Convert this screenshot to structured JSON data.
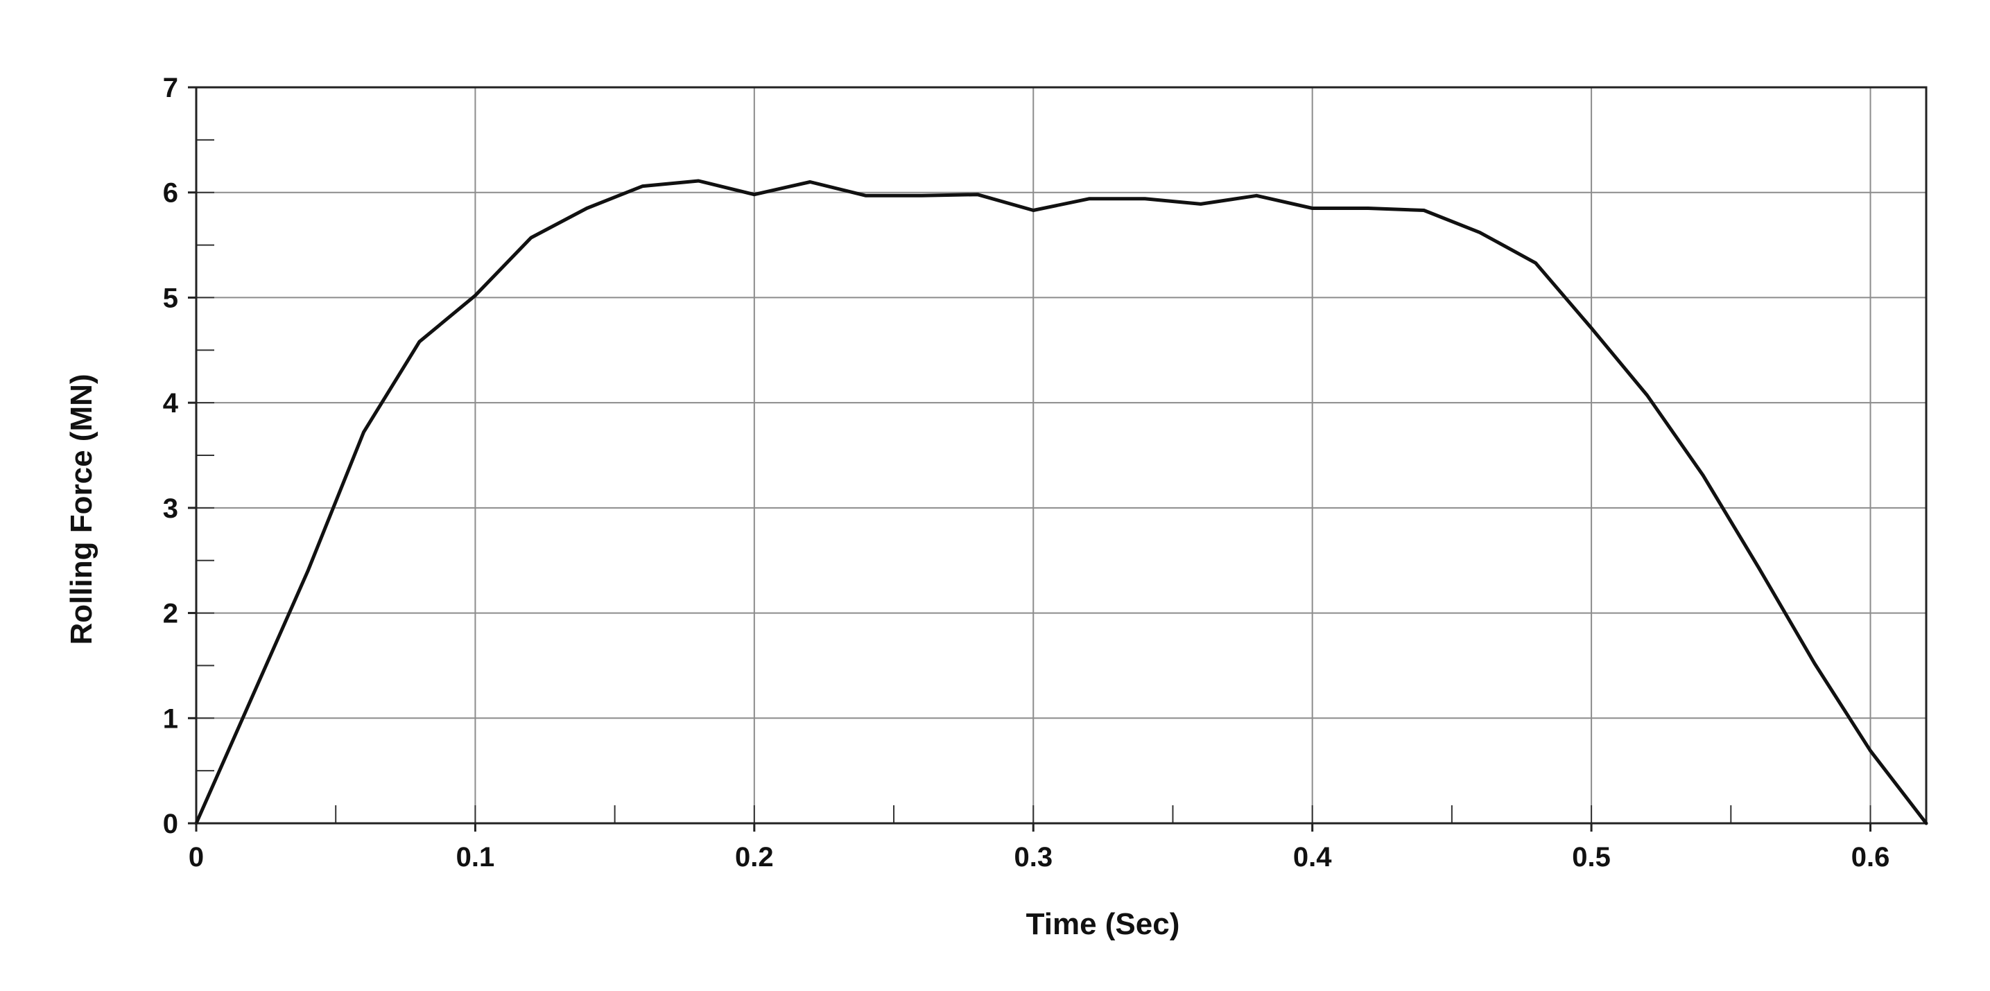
{
  "chart_data": {
    "type": "line",
    "title": "",
    "xlabel": "Time (Sec)",
    "ylabel": "Rolling Force (MN)",
    "xlim": [
      0,
      0.62
    ],
    "ylim": [
      0,
      7
    ],
    "x_ticks": [
      0,
      0.1,
      0.2,
      0.3,
      0.4,
      0.5,
      0.6
    ],
    "x_tick_labels": [
      "0",
      "0.1",
      "0.2",
      "0.3",
      "0.4",
      "0.5",
      "0.6"
    ],
    "y_ticks": [
      0,
      1,
      2,
      3,
      4,
      5,
      6,
      7
    ],
    "y_tick_labels": [
      "0",
      "1",
      "2",
      "3",
      "4",
      "5",
      "6",
      "7"
    ],
    "x_minor_step": 0.05,
    "y_minor_step": 0.5,
    "grid": true,
    "legend": "none",
    "line_color": "#111111",
    "grid_color": "#8c8c8c",
    "series": [
      {
        "x": [
          0,
          0.02,
          0.04,
          0.06,
          0.08,
          0.1,
          0.12,
          0.14,
          0.16,
          0.18,
          0.2,
          0.22,
          0.24,
          0.26,
          0.28,
          0.3,
          0.32,
          0.34,
          0.36,
          0.38,
          0.4,
          0.42,
          0.44,
          0.46,
          0.48,
          0.5,
          0.52,
          0.54,
          0.56,
          0.58,
          0.6,
          0.62
        ],
        "y": [
          0,
          1.2,
          2.4,
          3.72,
          4.58,
          5.02,
          5.57,
          5.85,
          6.06,
          6.11,
          5.98,
          6.1,
          5.97,
          5.97,
          5.98,
          5.83,
          5.94,
          5.94,
          5.89,
          5.97,
          5.85,
          5.85,
          5.83,
          5.62,
          5.33,
          4.71,
          4.07,
          3.31,
          2.43,
          1.52,
          0.69,
          0
        ]
      }
    ]
  }
}
